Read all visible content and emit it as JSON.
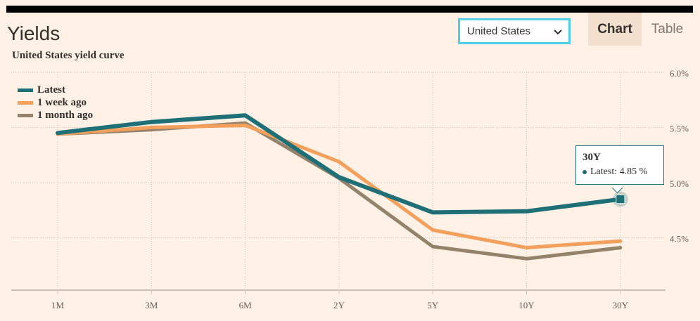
{
  "page_title": "Yields",
  "country_select": {
    "value": "United States"
  },
  "tabs": [
    {
      "label": "Chart"
    },
    {
      "label": "Table"
    }
  ],
  "colors": {
    "latest": "#1f6f76",
    "week": "#f2a05c",
    "month": "#94826b",
    "background": "#fff1e5"
  },
  "tooltip": {
    "title": "30Y",
    "series": "Latest",
    "value_text": "4.85 %"
  },
  "chart_data": {
    "type": "line",
    "title": "United States yield curve",
    "categories": [
      "1M",
      "3M",
      "6M",
      "2Y",
      "5Y",
      "10Y",
      "30Y"
    ],
    "y_ticks": [
      "6.0%",
      "5.5%",
      "5.0%",
      "4.5%"
    ],
    "ylim": [
      4.0,
      6.0
    ],
    "grid": true,
    "legend_position": "top-left",
    "series": [
      {
        "name": "Latest",
        "color": "#1f6f76",
        "values": [
          5.45,
          5.55,
          5.61,
          5.05,
          4.73,
          4.74,
          4.85
        ]
      },
      {
        "name": "1 week ago",
        "color": "#f2a05c",
        "values": [
          5.44,
          5.5,
          5.52,
          5.19,
          4.57,
          4.41,
          4.47
        ]
      },
      {
        "name": "1 month ago",
        "color": "#94826b",
        "values": [
          5.44,
          5.48,
          5.54,
          5.04,
          4.42,
          4.31,
          4.41
        ]
      }
    ]
  }
}
